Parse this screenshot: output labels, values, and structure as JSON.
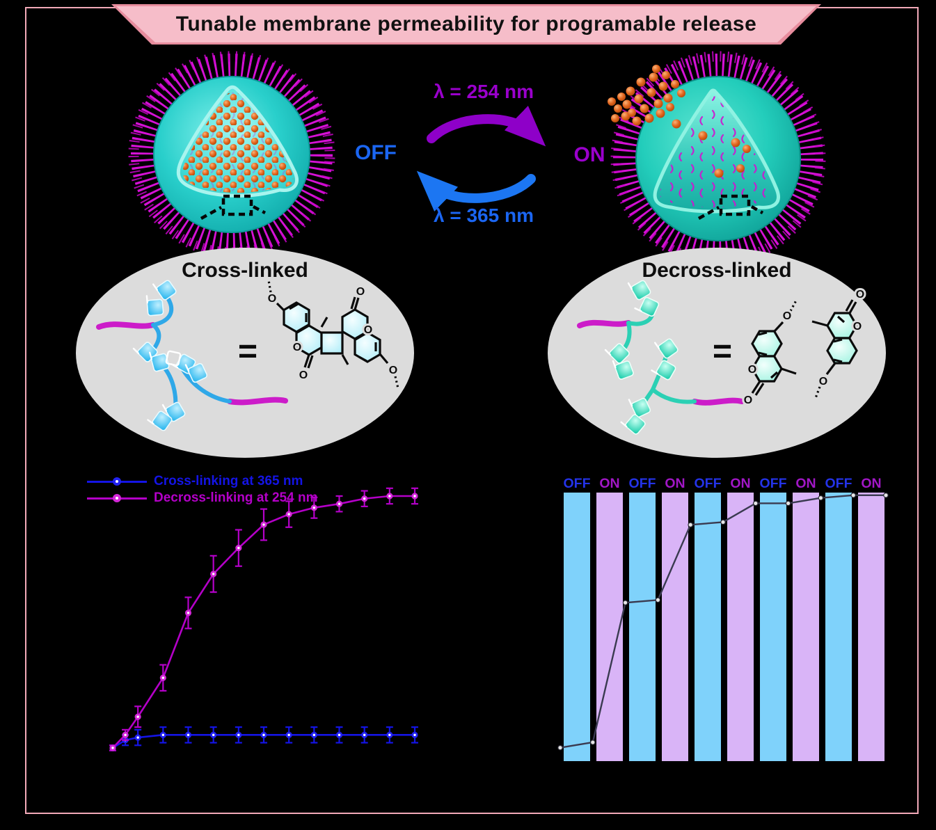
{
  "banner": {
    "title": "Tunable membrane  permeability  for programable  release"
  },
  "cycle": {
    "uv_on": "λ = 254 nm",
    "uv_off": "λ = 365 nm",
    "off": "OFF",
    "on": "ON"
  },
  "panels": {
    "crosslinked": "Cross-linked",
    "decrosslinked": "Decross-linked",
    "equals": "=",
    "oxygen": "O"
  },
  "colors": {
    "frame_pink": "#F2A9B8",
    "banner_fill": "#F6BDC9",
    "banner_border": "#E78C9D",
    "vesicle_core": "#29CFCB",
    "vesicle_hair": "#D511D5",
    "cargo_orange": "#E2661F",
    "off_blue": "#1B66F2",
    "on_purple": "#9A00CC",
    "ellipse_gray": "#DCDCDC"
  },
  "chart_data": [
    {
      "type": "line",
      "title": "",
      "xlabel": "",
      "ylabel": "",
      "axes_visible": false,
      "legend_position": "top-left",
      "x": [
        0,
        0.5,
        1,
        2,
        3,
        4,
        5,
        6,
        7,
        8,
        9,
        10,
        11,
        12
      ],
      "ylim": [
        0,
        100
      ],
      "series": [
        {
          "name": "Cross-linking at 365 nm",
          "color": "#1414E6",
          "marker_color": "#2222F0",
          "values": [
            0,
            3,
            4,
            5,
            5,
            5,
            5,
            5,
            5,
            5,
            5,
            5,
            5,
            5
          ],
          "errors": [
            1,
            2,
            3,
            3,
            3,
            3,
            3,
            3,
            3,
            3,
            3,
            3,
            3,
            3
          ]
        },
        {
          "name": "Decross-linking at 254 nm",
          "color": "#B400C8",
          "marker_color": "#D428D8",
          "values": [
            0,
            5,
            12,
            27,
            52,
            67,
            77,
            86,
            90,
            92.5,
            94,
            96,
            97,
            97
          ],
          "errors": [
            1,
            2,
            4,
            5,
            6,
            7,
            7,
            6,
            5,
            4,
            3,
            3,
            3,
            3
          ]
        }
      ]
    },
    {
      "type": "bar",
      "title": "",
      "categories": [
        "OFF",
        "ON",
        "OFF",
        "ON",
        "OFF",
        "ON",
        "OFF",
        "ON",
        "OFF",
        "ON"
      ],
      "values": [
        100,
        100,
        100,
        100,
        100,
        100,
        100,
        100,
        100,
        100
      ],
      "ylim": [
        0,
        100
      ],
      "bar_colors": {
        "OFF": "#7FD2FB",
        "ON": "#D9B4F7"
      },
      "label_colors": {
        "OFF": "#2433E8",
        "ON": "#A117C6"
      },
      "overlay_line": {
        "color": "#3A3A50",
        "values_pct": [
          5,
          7,
          59,
          60,
          88,
          89,
          96,
          96,
          98,
          99,
          99
        ]
      }
    }
  ]
}
